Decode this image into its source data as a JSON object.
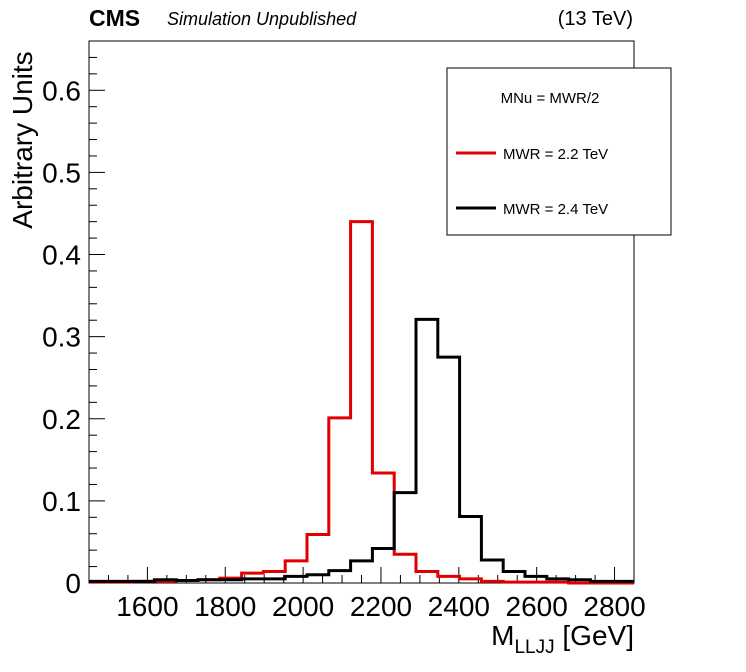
{
  "header": {
    "experiment": "CMS",
    "status": "Simulation Unpublished",
    "energy": "(13 TeV)"
  },
  "chart_data": {
    "type": "line",
    "style": "step-histogram",
    "xlabel_main": "M",
    "xlabel_sub": "LLJJ",
    "xlabel_unit": " [GeV]",
    "ylabel": "Arbitrary Units",
    "xlim": [
      1450,
      2850
    ],
    "ylim": [
      0,
      0.66
    ],
    "x_ticks": [
      "1600",
      "1800",
      "2000",
      "2200",
      "2400",
      "2600",
      "2800"
    ],
    "x_tick_values": [
      1600,
      1800,
      2000,
      2200,
      2400,
      2600,
      2800
    ],
    "y_ticks": [
      "0",
      "0.1",
      "0.2",
      "0.3",
      "0.4",
      "0.5",
      "0.6"
    ],
    "y_tick_values": [
      0,
      0.1,
      0.2,
      0.3,
      0.4,
      0.5,
      0.6
    ],
    "bin_edges": [
      1450,
      1506,
      1562,
      1618,
      1674,
      1730,
      1786,
      1842,
      1898,
      1954,
      2010,
      2066,
      2122,
      2178,
      2234,
      2290,
      2346,
      2402,
      2458,
      2514,
      2570,
      2626,
      2682,
      2738,
      2794,
      2850
    ],
    "legend": {
      "header": "MNu = MWR/2",
      "position": "top-right"
    },
    "series": [
      {
        "name": "MWR = 2.2 TeV",
        "color": "#e00000",
        "values": [
          0.001,
          0.001,
          0.002,
          0.002,
          0.003,
          0.004,
          0.006,
          0.012,
          0.014,
          0.027,
          0.059,
          0.201,
          0.44,
          0.134,
          0.035,
          0.014,
          0.008,
          0.005,
          0.002,
          0.001,
          0.001,
          0.001,
          0.0,
          0.0,
          0.0
        ]
      },
      {
        "name": "MWR = 2.4 TeV",
        "color": "#000000",
        "values": [
          0.002,
          0.002,
          0.002,
          0.004,
          0.003,
          0.004,
          0.004,
          0.005,
          0.005,
          0.008,
          0.01,
          0.015,
          0.027,
          0.042,
          0.11,
          0.321,
          0.275,
          0.081,
          0.028,
          0.014,
          0.008,
          0.005,
          0.004,
          0.002,
          0.002
        ]
      }
    ]
  }
}
